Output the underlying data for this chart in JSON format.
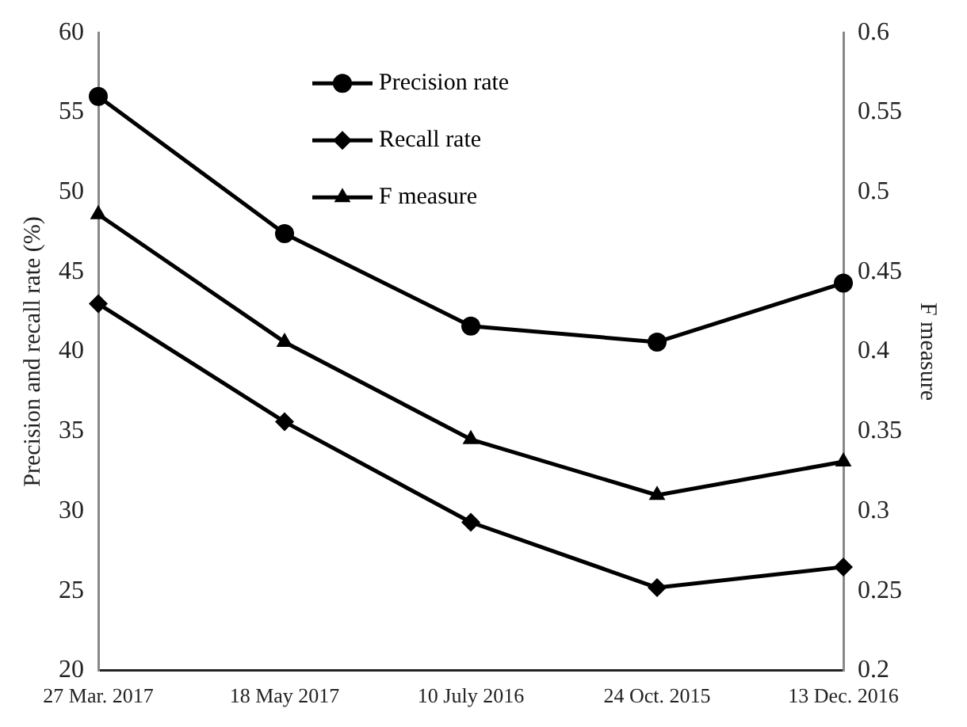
{
  "chart_data": {
    "type": "line",
    "categories": [
      "27 Mar. 2017",
      "18 May 2017",
      "10 July 2016",
      "24 Oct. 2015",
      "13 Dec. 2016"
    ],
    "series": [
      {
        "name": "Precision rate",
        "color": "#000000",
        "marker": "circle",
        "values": [
          56.0,
          47.4,
          41.6,
          40.6,
          44.3
        ]
      },
      {
        "name": "Recall rate",
        "color": "#000000",
        "marker": "diamond",
        "values": [
          43.0,
          35.6,
          29.3,
          25.2,
          26.5
        ]
      },
      {
        "name": "F measure",
        "color": "#000000",
        "marker": "triangle",
        "axis": "y2",
        "values": [
          0.486,
          0.406,
          0.345,
          0.31,
          0.331
        ]
      }
    ],
    "ylabel": "Precision and recall rate (%)",
    "y2label": "F measure",
    "ylim": [
      20,
      60
    ],
    "yticks": [
      20,
      25,
      30,
      35,
      40,
      45,
      50,
      55,
      60
    ],
    "y2lim": [
      0.2,
      0.6
    ],
    "y2ticks": [
      0.2,
      0.25,
      0.3,
      0.35,
      0.4,
      0.45,
      0.5,
      0.55,
      0.6
    ],
    "grid": false,
    "legend": "top",
    "line_style": "solid"
  }
}
